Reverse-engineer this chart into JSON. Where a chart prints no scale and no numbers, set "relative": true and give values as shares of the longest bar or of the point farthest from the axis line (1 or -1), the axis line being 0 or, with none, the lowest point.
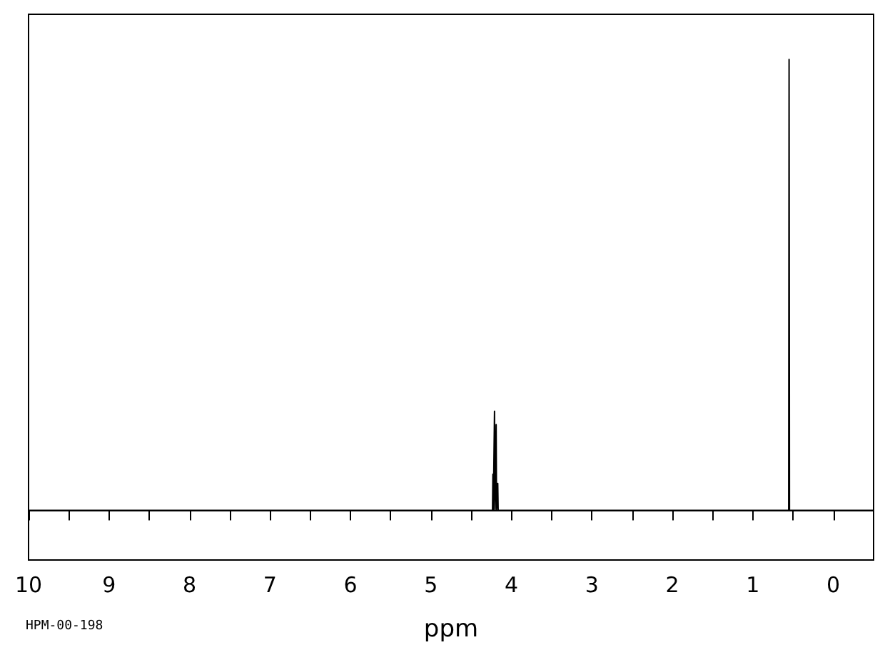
{
  "chart_data": {
    "type": "line",
    "relative": true,
    "xlabel": "ppm",
    "annotations": [
      "HPM-00-198"
    ],
    "xlim": [
      10,
      -0.5
    ],
    "xticks": [
      10,
      {
        "value": 9.5,
        "label": null
      },
      9,
      {
        "value": 8.5,
        "label": null
      },
      8,
      {
        "value": 7.5,
        "label": null
      },
      7,
      {
        "value": 6.5,
        "label": null
      },
      6,
      {
        "value": 5.5,
        "label": null
      },
      5,
      {
        "value": 4.5,
        "label": null
      },
      4,
      {
        "value": 3.5,
        "label": null
      },
      3,
      {
        "value": 2.5,
        "label": null
      },
      2,
      {
        "value": 1.5,
        "label": null
      },
      1,
      {
        "value": 0.5,
        "label": null
      },
      0
    ],
    "grid": false,
    "marker": "none",
    "line_style": "solid",
    "series": [
      {
        "color": "#000000",
        "x": [
          10,
          4.25,
          4.235,
          4.23,
          4.225,
          4.215,
          4.21,
          4.205,
          4.195,
          4.19,
          4.185,
          4.175,
          4.17,
          4.165,
          4.15,
          0.58,
          0.555,
          0.55,
          0.545,
          0.52,
          -0.5
        ],
        "values": [
          0,
          0,
          0,
          0.08,
          0,
          0,
          0.22,
          0,
          0,
          0.19,
          0,
          0,
          0.06,
          0,
          0,
          0,
          0,
          1,
          0,
          0,
          0
        ]
      }
    ]
  }
}
